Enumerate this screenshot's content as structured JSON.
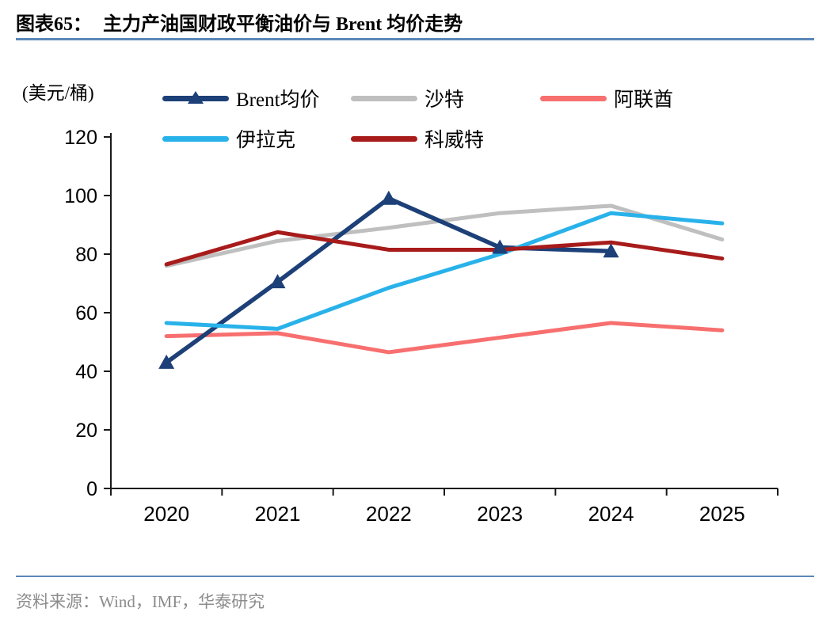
{
  "header": {
    "title_prefix": "图表65：",
    "title_text": "主力产油国财政平衡油价与 Brent 均价走势"
  },
  "chart": {
    "unit_label": "(美元/桶)"
  },
  "chart_data": {
    "type": "line",
    "title": "主力产油国财政平衡油价与 Brent 均价走势",
    "categories": [
      "2020",
      "2021",
      "2022",
      "2023",
      "2024",
      "2025"
    ],
    "series": [
      {
        "key": "brent",
        "name": "Brent均价",
        "color": "#1C4077",
        "marker": "triangle",
        "values": [
          43,
          70.5,
          99,
          82.3,
          81,
          null
        ]
      },
      {
        "key": "saudi",
        "name": "沙特",
        "color": "#BFBFBF",
        "marker": "none",
        "values": [
          76,
          84.5,
          89,
          94,
          96.5,
          85
        ]
      },
      {
        "key": "uae",
        "name": "阿联酋",
        "color": "#F76F6F",
        "marker": "none",
        "values": [
          52,
          53,
          46.5,
          51.5,
          56.5,
          54
        ]
      },
      {
        "key": "iraq",
        "name": "伊拉克",
        "color": "#29B2EA",
        "marker": "none",
        "values": [
          56.5,
          54.5,
          68.5,
          80,
          94,
          90.5
        ]
      },
      {
        "key": "kuwait",
        "name": "科威特",
        "color": "#A81B1B",
        "marker": "none",
        "values": [
          76.5,
          87.5,
          81.5,
          81.5,
          84,
          78.5
        ]
      }
    ],
    "xlabel": "",
    "ylabel": "(美元/桶)",
    "ylim": [
      0,
      120
    ],
    "y_ticks": [
      0,
      20,
      40,
      60,
      80,
      100,
      120
    ],
    "grid": false,
    "legend_position": "top"
  },
  "palette": {
    "divider": "#5B87B7",
    "axis": "#1A1A1A",
    "tick_label": "#000000",
    "source_text": "#8C8C8C"
  },
  "footer": {
    "source": "资料来源：Wind，IMF，华泰研究"
  }
}
